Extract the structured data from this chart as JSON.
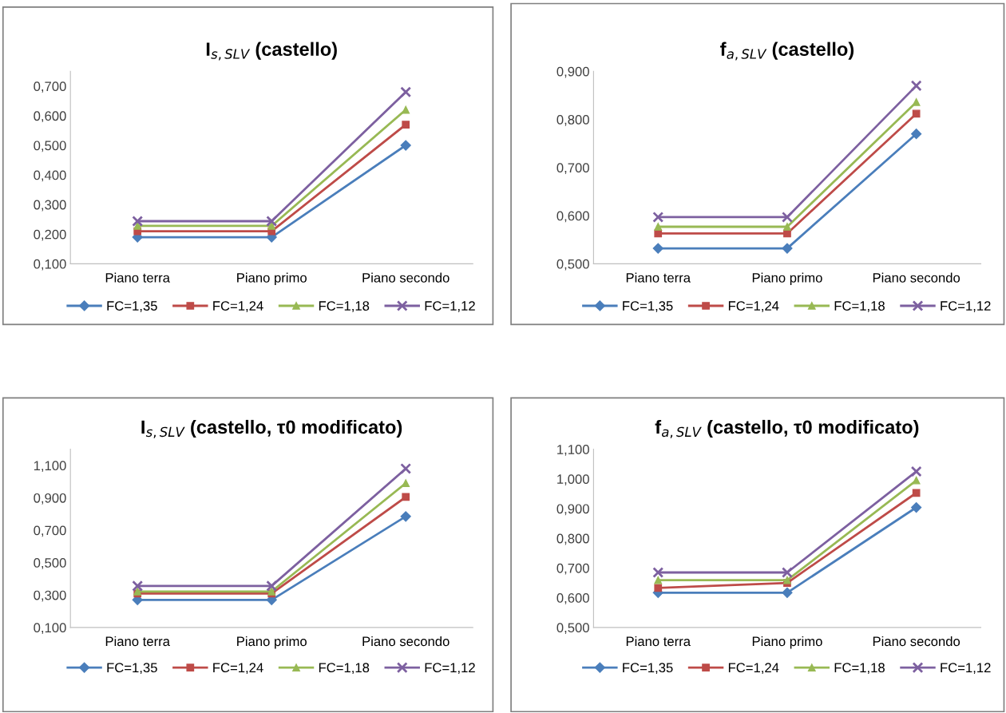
{
  "chart_data": [
    {
      "type": "line",
      "title": "I$_{s,SLV}$ (castello)",
      "categories": [
        "Piano terra",
        "Piano primo",
        "Piano secondo"
      ],
      "legend": "bottom",
      "grid": false,
      "ylim": [
        0.1,
        0.75
      ],
      "yticks": [
        {
          "value": 0.1,
          "label": "0,100"
        },
        {
          "value": 0.2,
          "label": "0,200"
        },
        {
          "value": 0.3,
          "label": "0,300"
        },
        {
          "value": 0.4,
          "label": "0,400"
        },
        {
          "value": 0.5,
          "label": "0,500"
        },
        {
          "value": 0.6,
          "label": "0,600"
        },
        {
          "value": 0.7,
          "label": "0,700"
        }
      ],
      "series": [
        {
          "name": "FC=1,35",
          "color": "#4a7ebb",
          "marker": "diamond",
          "values": [
            0.19,
            0.19,
            0.5
          ]
        },
        {
          "name": "FC=1,24",
          "color": "#be4b48",
          "marker": "square",
          "values": [
            0.21,
            0.21,
            0.57
          ]
        },
        {
          "name": "FC=1,18",
          "color": "#98b954",
          "marker": "triangle",
          "values": [
            0.228,
            0.228,
            0.62
          ]
        },
        {
          "name": "FC=1,12",
          "color": "#7d60a0",
          "marker": "cross",
          "values": [
            0.244,
            0.244,
            0.68
          ]
        }
      ]
    },
    {
      "type": "line",
      "title": "f$_{a,SLV}$ (castello)",
      "categories": [
        "Piano terra",
        "Piano primo",
        "Piano secondo"
      ],
      "legend": "bottom",
      "grid": false,
      "ylim": [
        0.5,
        0.9
      ],
      "yticks": [
        {
          "value": 0.5,
          "label": "0,500"
        },
        {
          "value": 0.6,
          "label": "0,600"
        },
        {
          "value": 0.7,
          "label": "0,700"
        },
        {
          "value": 0.8,
          "label": "0,800"
        },
        {
          "value": 0.9,
          "label": "0,900"
        }
      ],
      "series": [
        {
          "name": "FC=1,35",
          "color": "#4a7ebb",
          "marker": "diamond",
          "values": [
            0.532,
            0.532,
            0.77
          ]
        },
        {
          "name": "FC=1,24",
          "color": "#be4b48",
          "marker": "square",
          "values": [
            0.563,
            0.563,
            0.812
          ]
        },
        {
          "name": "FC=1,18",
          "color": "#98b954",
          "marker": "triangle",
          "values": [
            0.577,
            0.577,
            0.836
          ]
        },
        {
          "name": "FC=1,12",
          "color": "#7d60a0",
          "marker": "cross",
          "values": [
            0.597,
            0.597,
            0.87
          ]
        }
      ]
    },
    {
      "type": "line",
      "title": "I$_{s,SLV}$ (castello, τ0 modificato)",
      "categories": [
        "Piano terra",
        "Piano primo",
        "Piano secondo"
      ],
      "legend": "bottom",
      "grid": false,
      "ylim": [
        0.1,
        1.2
      ],
      "yticks": [
        {
          "value": 0.1,
          "label": "0,100"
        },
        {
          "value": 0.3,
          "label": "0,300"
        },
        {
          "value": 0.5,
          "label": "0,500"
        },
        {
          "value": 0.7,
          "label": "0,700"
        },
        {
          "value": 0.9,
          "label": "0,900"
        },
        {
          "value": 1.1,
          "label": "1,100"
        }
      ],
      "series": [
        {
          "name": "FC=1,35",
          "color": "#4a7ebb",
          "marker": "diamond",
          "values": [
            0.27,
            0.27,
            0.785
          ]
        },
        {
          "name": "FC=1,24",
          "color": "#be4b48",
          "marker": "square",
          "values": [
            0.309,
            0.309,
            0.905
          ]
        },
        {
          "name": "FC=1,18",
          "color": "#98b954",
          "marker": "triangle",
          "values": [
            0.322,
            0.322,
            0.99
          ]
        },
        {
          "name": "FC=1,12",
          "color": "#7d60a0",
          "marker": "cross",
          "values": [
            0.356,
            0.356,
            1.08
          ]
        }
      ]
    },
    {
      "type": "line",
      "title": "f$_{a,SLV}$ (castello, τ0 modificato)",
      "categories": [
        "Piano terra",
        "Piano primo",
        "Piano secondo"
      ],
      "legend": "bottom",
      "grid": false,
      "ylim": [
        0.5,
        1.1
      ],
      "yticks": [
        {
          "value": 0.5,
          "label": "0,500"
        },
        {
          "value": 0.6,
          "label": "0,600"
        },
        {
          "value": 0.7,
          "label": "0,700"
        },
        {
          "value": 0.8,
          "label": "0,800"
        },
        {
          "value": 0.9,
          "label": "0,900"
        },
        {
          "value": 1.0,
          "label": "1,000"
        },
        {
          "value": 1.1,
          "label": "1,100"
        }
      ],
      "series": [
        {
          "name": "FC=1,35",
          "color": "#4a7ebb",
          "marker": "diamond",
          "values": [
            0.617,
            0.617,
            0.904
          ]
        },
        {
          "name": "FC=1,24",
          "color": "#be4b48",
          "marker": "square",
          "values": [
            0.633,
            0.65,
            0.953
          ]
        },
        {
          "name": "FC=1,18",
          "color": "#98b954",
          "marker": "triangle",
          "values": [
            0.659,
            0.659,
            0.995
          ]
        },
        {
          "name": "FC=1,12",
          "color": "#7d60a0",
          "marker": "cross",
          "values": [
            0.685,
            0.685,
            1.025
          ]
        }
      ]
    }
  ]
}
